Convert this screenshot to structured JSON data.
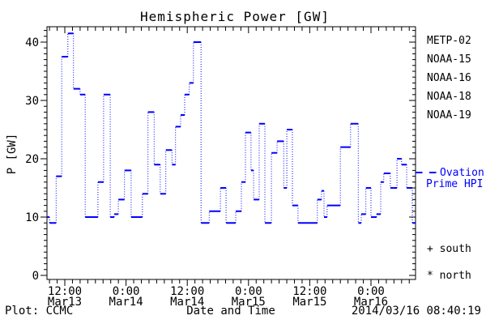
{
  "title": "Hemispheric Power [GW]",
  "axes": {
    "y": {
      "label": "P [GW]",
      "ticks": [
        0,
        10,
        20,
        30,
        40
      ],
      "minor_step_gw": 1,
      "range_gw": [
        0,
        43.3
      ]
    },
    "x": {
      "label": "Date and Time",
      "ticks": [
        {
          "h": 12,
          "time": "12:00",
          "date": "Mar13"
        },
        {
          "h": 24,
          "time": "0:00",
          "date": "Mar14"
        },
        {
          "h": 36,
          "time": "12:00",
          "date": "Mar14"
        },
        {
          "h": 48,
          "time": "0:00",
          "date": "Mar15"
        },
        {
          "h": 60,
          "time": "12:00",
          "date": "Mar15"
        },
        {
          "h": 72,
          "time": "0:00",
          "date": "Mar16"
        }
      ],
      "minor_step_hours": 1.5,
      "range_hours": [
        8.5,
        80.7
      ]
    }
  },
  "legend": {
    "satellites": [
      {
        "label": "METP-02",
        "color": "#000000"
      },
      {
        "label": "NOAA-15",
        "color": "#0000ff"
      },
      {
        "label": "NOAA-16",
        "color": "#29c1ff"
      },
      {
        "label": "NOAA-18",
        "color": "#63ff85"
      },
      {
        "label": "NOAA-19",
        "color": "#ff9e33"
      }
    ],
    "ovation_line1": "Ovation",
    "ovation_line2": "Prime HPI",
    "south_marker": "+ south",
    "north_marker": "* north"
  },
  "footer": {
    "left": "Plot: CCMC",
    "right": "2014/03/16 08:40:19"
  },
  "chart_data": {
    "type": "line",
    "style": "post-step histogram, solid horizontal treads, dotted vertical risers",
    "line_color": "#0000ff",
    "title": "Hemispheric Power [GW]",
    "xlabel": "Date and Time",
    "ylabel": "P [GW]",
    "x_unit": "hours since 2014-03-13 00:00 UT",
    "ylim": [
      0,
      43.3
    ],
    "xlim_hours": [
      8.5,
      80.7
    ],
    "end_hour": 80.7,
    "points": [
      [
        8.5,
        10
      ],
      [
        9.0,
        9
      ],
      [
        10.3,
        17
      ],
      [
        11.4,
        37.5
      ],
      [
        12.6,
        41.5
      ],
      [
        13.7,
        32
      ],
      [
        15.0,
        31
      ],
      [
        16.0,
        10
      ],
      [
        18.5,
        16
      ],
      [
        19.6,
        31
      ],
      [
        20.9,
        10
      ],
      [
        21.7,
        10.5
      ],
      [
        22.5,
        13
      ],
      [
        23.7,
        18
      ],
      [
        25.0,
        10
      ],
      [
        27.2,
        14
      ],
      [
        28.3,
        28
      ],
      [
        29.5,
        19
      ],
      [
        30.7,
        14
      ],
      [
        31.8,
        21.5
      ],
      [
        33.0,
        19
      ],
      [
        33.7,
        25.5
      ],
      [
        34.7,
        27.5
      ],
      [
        35.5,
        31
      ],
      [
        36.4,
        33
      ],
      [
        37.2,
        40
      ],
      [
        38.7,
        9
      ],
      [
        40.3,
        11
      ],
      [
        42.5,
        15
      ],
      [
        43.6,
        9
      ],
      [
        45.5,
        11
      ],
      [
        46.6,
        16
      ],
      [
        47.4,
        24.5
      ],
      [
        48.5,
        18
      ],
      [
        49.0,
        13
      ],
      [
        50.1,
        26
      ],
      [
        51.2,
        9
      ],
      [
        52.5,
        21
      ],
      [
        53.6,
        23
      ],
      [
        54.9,
        15
      ],
      [
        55.5,
        25
      ],
      [
        56.6,
        12
      ],
      [
        57.7,
        9
      ],
      [
        61.5,
        13
      ],
      [
        62.3,
        14.5
      ],
      [
        62.8,
        10
      ],
      [
        63.4,
        12
      ],
      [
        66.0,
        22
      ],
      [
        68.0,
        26
      ],
      [
        69.5,
        9
      ],
      [
        70.1,
        10.5
      ],
      [
        71.0,
        15
      ],
      [
        72.0,
        10
      ],
      [
        73.1,
        10.5
      ],
      [
        73.9,
        16
      ],
      [
        74.5,
        17.5
      ],
      [
        75.8,
        15
      ],
      [
        77.1,
        20
      ],
      [
        78.0,
        19
      ],
      [
        79.0,
        15
      ],
      [
        80.1,
        9
      ]
    ]
  }
}
